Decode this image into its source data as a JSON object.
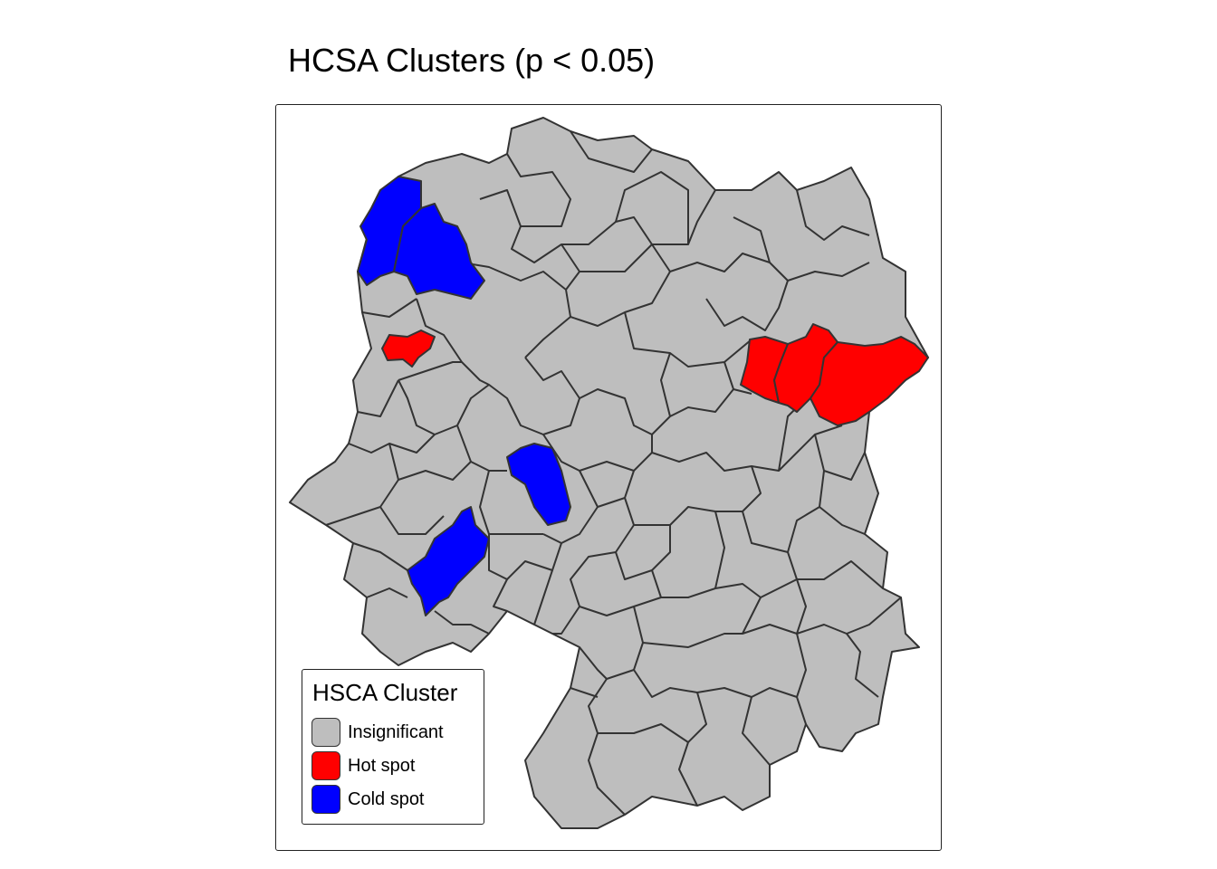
{
  "title": "HCSA Clusters (p < 0.05)",
  "legend": {
    "title": "HSCA Cluster",
    "items": [
      {
        "label": "Insignificant",
        "color": "#bebebe"
      },
      {
        "label": "Hot spot",
        "color": "#ff0000"
      },
      {
        "label": "Cold spot",
        "color": "#0000ff"
      }
    ]
  },
  "colors": {
    "insignificant": "#bebebe",
    "hot_spot": "#ff0000",
    "cold_spot": "#0000ff",
    "border": "#333333"
  }
}
